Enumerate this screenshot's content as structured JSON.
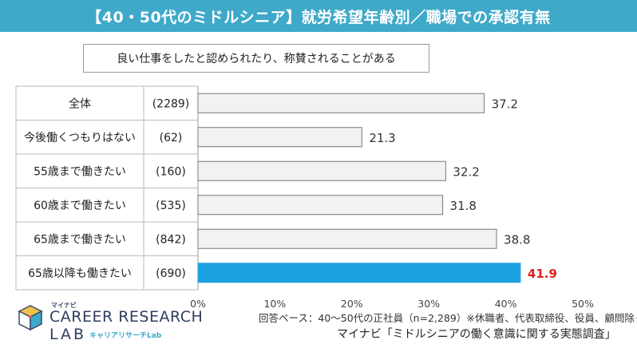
{
  "title": "【40・50代のミドルシニア】就労希望年齢別／職場での承認有無",
  "subtitle": "良い仕事をしたと認められたり、称賛されることがある",
  "chart_data": {
    "type": "bar",
    "orientation": "horizontal",
    "categories": [
      "全体",
      "今後働くつもりはない",
      "55歳まで働きたい",
      "60歳まで働きたい",
      "65歳まで働きたい",
      "65歳以降も働きたい"
    ],
    "counts": [
      "(2289)",
      "(62)",
      "(160)",
      "(535)",
      "(842)",
      "(690)"
    ],
    "values": [
      37.2,
      21.3,
      32.2,
      31.8,
      38.8,
      41.9
    ],
    "value_labels": [
      "37.2",
      "21.3",
      "32.2",
      "31.8",
      "38.8",
      "41.9"
    ],
    "highlight_index": 5,
    "xlim": [
      0,
      50
    ],
    "xticks": [
      "0%",
      "10%",
      "20%",
      "30%",
      "40%",
      "50%"
    ],
    "colors": {
      "bar_default": "#f4f1f2",
      "bar_border": "#777777",
      "bar_highlight": "#1ea1e0",
      "label_highlight": "#e02020",
      "label_default": "#333333"
    }
  },
  "footer": {
    "note": "回答ベース：40～50代の正社員（n=2,289）※休職者、代表取締役、役員、顧問除く",
    "source": "マイナビ「ミドルシニアの働く意識に関する実態調査」"
  },
  "logo": {
    "small": "マイナビ",
    "main": "CAREER RESEARCH",
    "lab": "LAB",
    "kana": "キャリアリサーチLab"
  }
}
